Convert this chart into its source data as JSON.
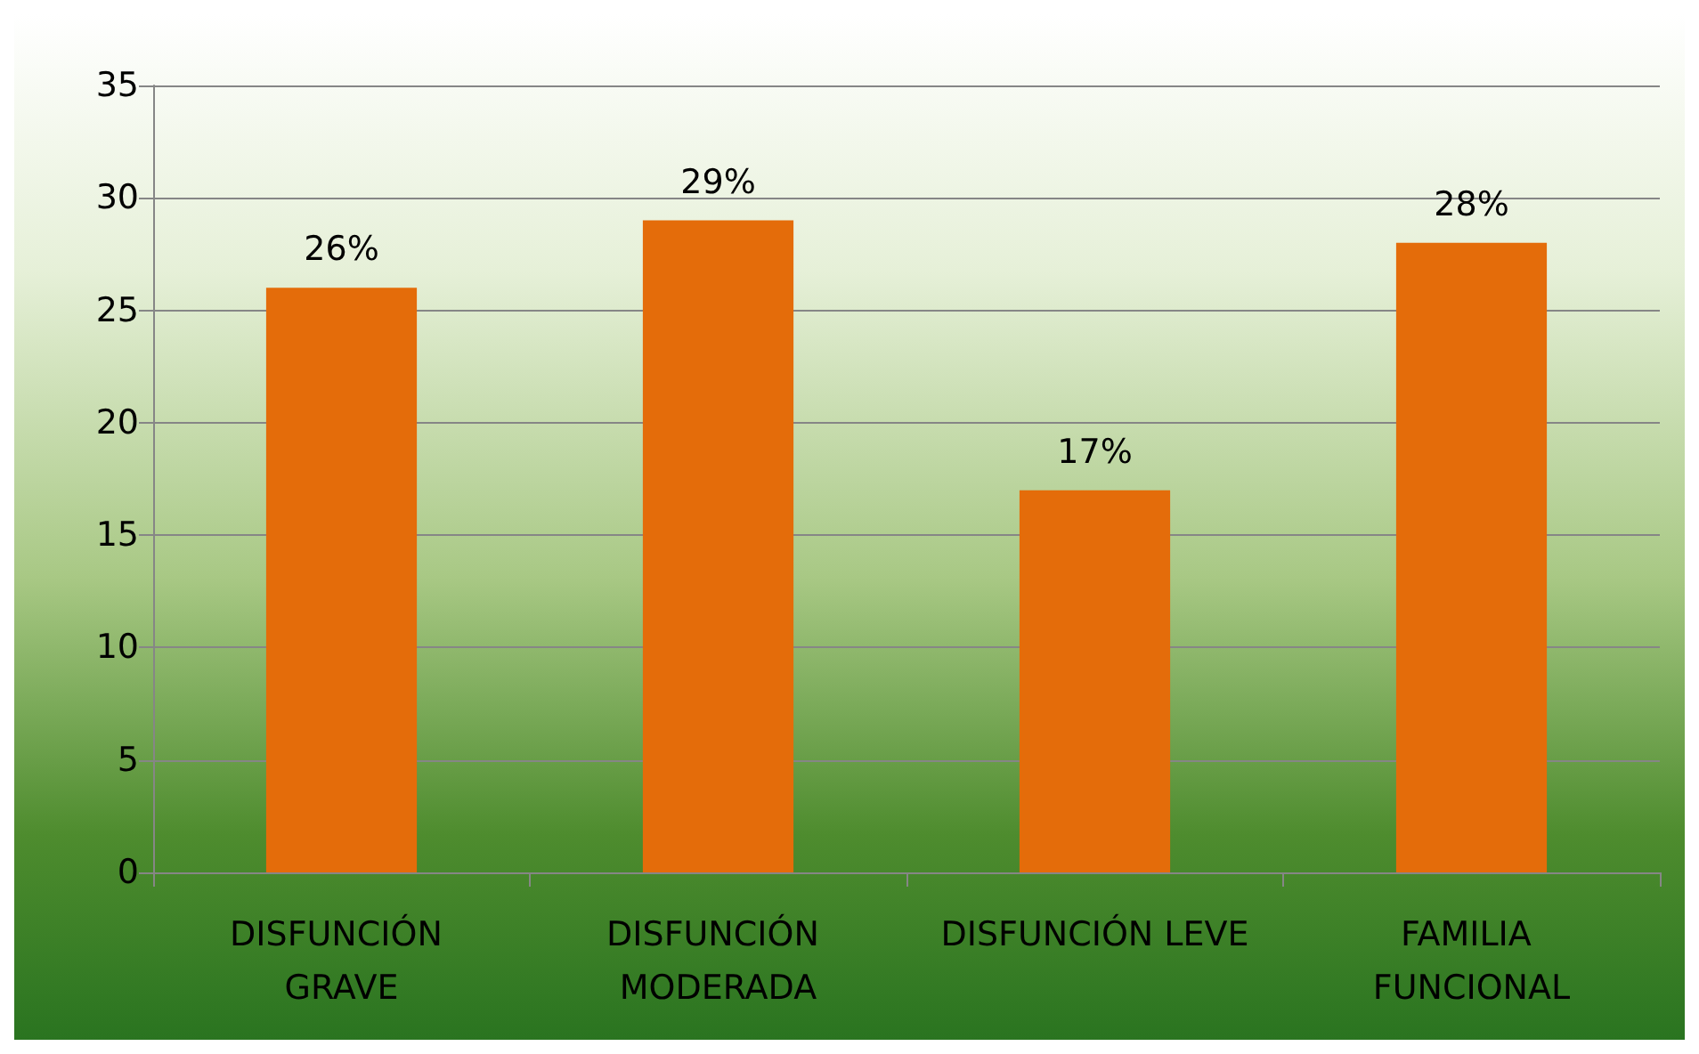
{
  "chart_data": {
    "type": "bar",
    "categories": [
      "DISFUNCIÓN GRAVE",
      "DISFUNCIÓN MODERADA",
      "DISFUNCIÓN LEVE",
      "FAMILIA FUNCIONAL"
    ],
    "values": [
      26,
      29,
      17,
      28
    ],
    "value_labels": [
      "26%",
      "29%",
      "17%",
      "28%"
    ],
    "color": "#e46c0a",
    "ylim": [
      0,
      35
    ],
    "yticks": [
      0,
      5,
      10,
      15,
      20,
      25,
      30,
      35
    ],
    "grid": "y"
  }
}
